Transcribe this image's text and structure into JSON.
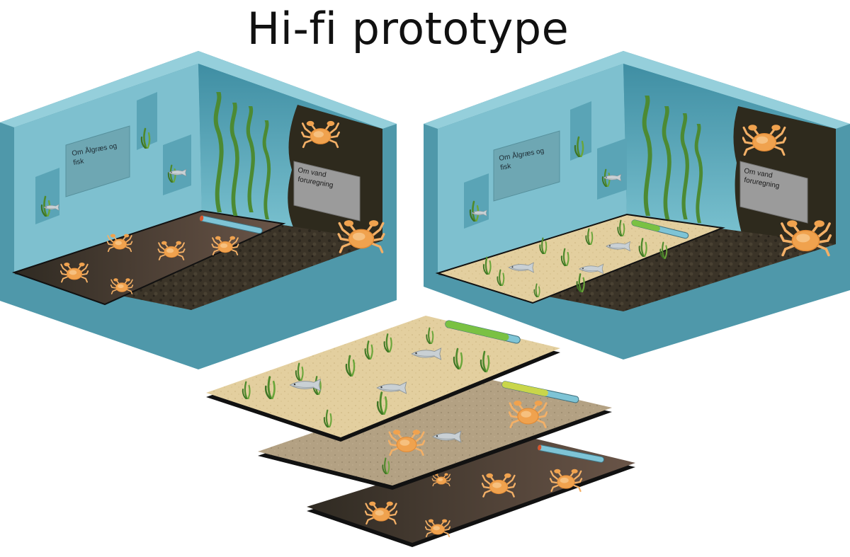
{
  "title": "Hi-fi prototype",
  "rooms": [
    {
      "name": "room-polluted",
      "sign_left": [
        "Om Ålgræs og",
        "fisk"
      ],
      "sign_right": [
        "Om vand",
        "foruregning"
      ],
      "health_level": 0.05,
      "floor_state": "mud-with-crabs"
    },
    {
      "name": "room-clean",
      "sign_left": [
        "Om Ålgræs og",
        "fisk"
      ],
      "sign_right": [
        "Om vand",
        "foruregning"
      ],
      "health_level": 0.5,
      "floor_state": "sand-with-eelgrass-and-fish"
    }
  ],
  "layers": [
    {
      "name": "layer-clean",
      "health_level": 0.85,
      "floor": "sand"
    },
    {
      "name": "layer-medium",
      "health_level": 0.6,
      "floor": "mixed"
    },
    {
      "name": "layer-polluted",
      "health_level": 0.05,
      "floor": "mud"
    }
  ],
  "colors": {
    "water_wall": "#7ec0cf",
    "water_wall_dark": "#5aa9bb",
    "outer_frame": "#4f98aa",
    "outer_frame_top": "#95cfdb",
    "dark_wall": "#2e2a1d",
    "mud": "#3a3326",
    "sand": "#e2cda0",
    "crab": "#f0a24e",
    "eelgrass": "#4f8a2c",
    "health_green": "#7ac143",
    "health_yellow": "#c9d64a",
    "health_blue": "#7ec4d6",
    "health_red": "#d9552b"
  }
}
